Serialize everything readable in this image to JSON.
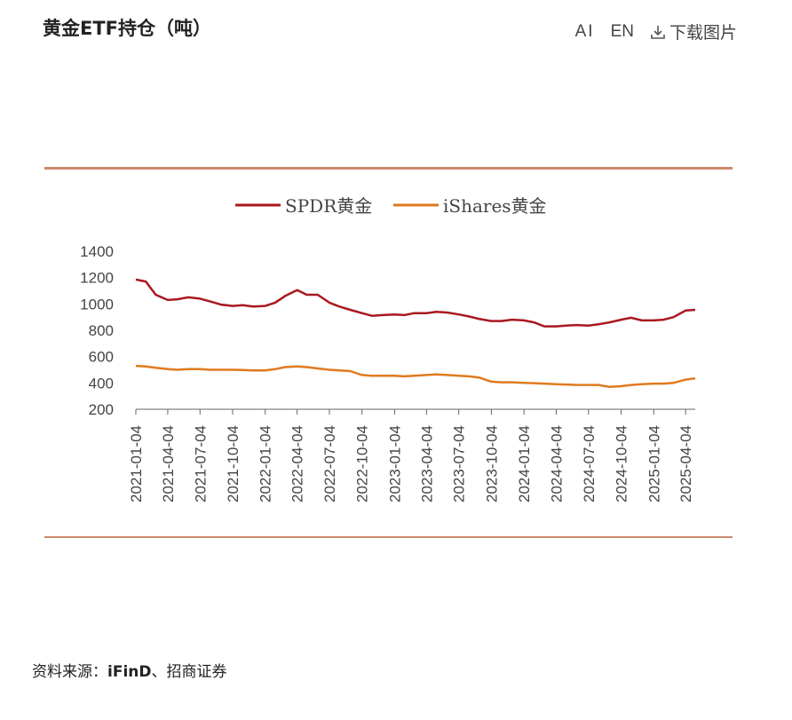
{
  "header": {
    "title": "黄金ETF持仓（吨）",
    "ai_label": "AI",
    "en_label": "EN",
    "download_label": "下载图片"
  },
  "source": {
    "prefix": "资料来源：",
    "name": "iFinD",
    "suffix": "、招商证券"
  },
  "colors": {
    "spdr": "#a8191f",
    "ishares": "#e07a1f",
    "rule": "#c98a6e"
  },
  "chart_data": {
    "type": "line",
    "title": "黄金ETF持仓（吨）",
    "xlabel": "",
    "ylabel": "",
    "ylim": [
      200,
      1400
    ],
    "yticks": [
      200,
      400,
      600,
      800,
      1000,
      1200,
      1400
    ],
    "x_tick_labels": [
      "2021-01-04",
      "2021-04-04",
      "2021-07-04",
      "2021-10-04",
      "2022-01-04",
      "2022-04-04",
      "2022-07-04",
      "2022-10-04",
      "2023-01-04",
      "2023-04-04",
      "2023-07-04",
      "2023-10-04",
      "2024-01-04",
      "2024-04-04",
      "2024-07-04",
      "2024-10-04",
      "2025-01-04",
      "2025-04-04"
    ],
    "legend_position": "top-center",
    "grid": false,
    "series": [
      {
        "name": "SPDR黄金",
        "color": "#a8191f",
        "x": [
          "2021-01-04",
          "2021-02-01",
          "2021-03-01",
          "2021-04-04",
          "2021-05-01",
          "2021-06-01",
          "2021-07-04",
          "2021-08-01",
          "2021-09-01",
          "2021-10-04",
          "2021-11-01",
          "2021-12-01",
          "2022-01-04",
          "2022-02-01",
          "2022-03-01",
          "2022-04-04",
          "2022-05-01",
          "2022-06-01",
          "2022-07-04",
          "2022-08-01",
          "2022-09-01",
          "2022-10-04",
          "2022-11-01",
          "2022-12-01",
          "2023-01-04",
          "2023-02-01",
          "2023-03-01",
          "2023-04-04",
          "2023-05-01",
          "2023-06-01",
          "2023-07-04",
          "2023-08-01",
          "2023-09-01",
          "2023-10-04",
          "2023-11-01",
          "2023-12-01",
          "2024-01-04",
          "2024-02-01",
          "2024-03-01",
          "2024-04-04",
          "2024-05-01",
          "2024-06-01",
          "2024-07-04",
          "2024-08-01",
          "2024-09-01",
          "2024-10-04",
          "2024-11-01",
          "2024-12-01",
          "2025-01-04",
          "2025-02-01",
          "2025-03-01",
          "2025-04-04",
          "2025-05-01"
        ],
        "values": [
          1185,
          1170,
          1070,
          1030,
          1035,
          1050,
          1040,
          1020,
          995,
          985,
          990,
          980,
          985,
          1010,
          1060,
          1105,
          1070,
          1070,
          1010,
          980,
          955,
          930,
          910,
          915,
          920,
          915,
          930,
          930,
          940,
          935,
          920,
          905,
          885,
          870,
          870,
          880,
          875,
          860,
          830,
          830,
          835,
          840,
          835,
          845,
          860,
          880,
          895,
          875,
          875,
          880,
          900,
          950,
          955
        ]
      },
      {
        "name": "iShares黄金",
        "color": "#e07a1f",
        "x": [
          "2021-01-04",
          "2021-02-01",
          "2021-03-01",
          "2021-04-04",
          "2021-05-01",
          "2021-06-01",
          "2021-07-04",
          "2021-08-01",
          "2021-09-01",
          "2021-10-04",
          "2021-11-01",
          "2021-12-01",
          "2022-01-04",
          "2022-02-01",
          "2022-03-01",
          "2022-04-04",
          "2022-05-01",
          "2022-06-01",
          "2022-07-04",
          "2022-08-01",
          "2022-09-01",
          "2022-10-04",
          "2022-11-01",
          "2022-12-01",
          "2023-01-04",
          "2023-02-01",
          "2023-03-01",
          "2023-04-04",
          "2023-05-01",
          "2023-06-01",
          "2023-07-04",
          "2023-08-01",
          "2023-09-01",
          "2023-10-04",
          "2023-11-01",
          "2023-12-01",
          "2024-01-04",
          "2024-02-01",
          "2024-03-01",
          "2024-04-04",
          "2024-05-01",
          "2024-06-01",
          "2024-07-04",
          "2024-08-01",
          "2024-09-01",
          "2024-10-04",
          "2024-11-01",
          "2024-12-01",
          "2025-01-04",
          "2025-02-01",
          "2025-03-01",
          "2025-04-04",
          "2025-05-01"
        ],
        "values": [
          530,
          525,
          515,
          505,
          500,
          505,
          505,
          500,
          500,
          500,
          498,
          495,
          495,
          505,
          520,
          525,
          520,
          510,
          500,
          495,
          490,
          460,
          455,
          455,
          455,
          450,
          455,
          460,
          465,
          460,
          455,
          450,
          440,
          410,
          405,
          405,
          400,
          398,
          395,
          390,
          388,
          385,
          385,
          385,
          370,
          375,
          385,
          390,
          395,
          395,
          400,
          425,
          435
        ]
      }
    ]
  }
}
